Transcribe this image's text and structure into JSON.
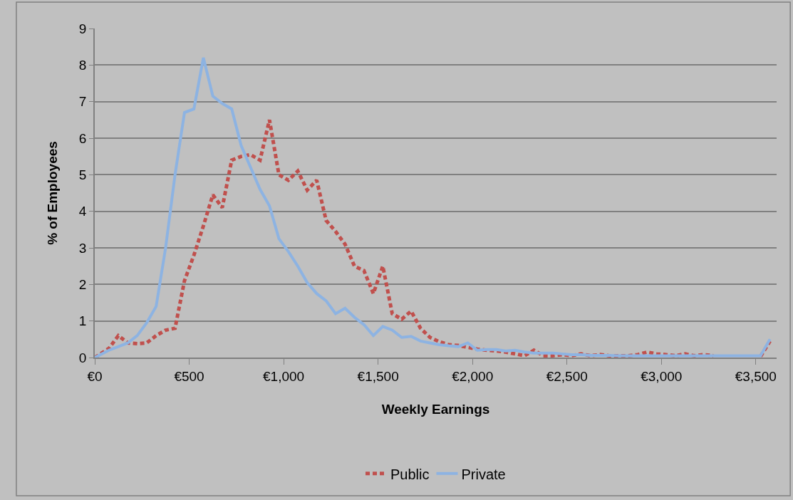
{
  "chart_data": {
    "type": "line",
    "xlabel": "Weekly Earnings",
    "ylabel": "% of Employees",
    "x": [
      0,
      75,
      125,
      175,
      225,
      275,
      325,
      375,
      425,
      475,
      525,
      575,
      625,
      675,
      725,
      775,
      825,
      875,
      925,
      975,
      1025,
      1075,
      1125,
      1175,
      1225,
      1275,
      1325,
      1375,
      1425,
      1475,
      1525,
      1575,
      1625,
      1675,
      1725,
      1775,
      1825,
      1875,
      1925,
      1975,
      2025,
      2075,
      2125,
      2175,
      2225,
      2275,
      2325,
      2375,
      2425,
      2475,
      2525,
      2575,
      2625,
      2675,
      2725,
      2775,
      2825,
      2875,
      2925,
      2975,
      3025,
      3075,
      3125,
      3175,
      3225,
      3275,
      3325,
      3375,
      3425,
      3475,
      3525,
      3575
    ],
    "series": [
      {
        "name": "Public",
        "color": "#c0504d",
        "line_style": "dashed",
        "values": [
          0,
          0.25,
          0.6,
          0.4,
          0.38,
          0.4,
          0.6,
          0.75,
          0.8,
          2.1,
          2.8,
          3.6,
          4.45,
          4.1,
          5.4,
          5.5,
          5.55,
          5.4,
          6.5,
          5.0,
          4.85,
          5.1,
          4.58,
          4.85,
          3.75,
          3.45,
          3.1,
          2.5,
          2.38,
          1.75,
          2.5,
          1.2,
          1.05,
          1.27,
          0.8,
          0.55,
          0.43,
          0.35,
          0.33,
          0.28,
          0.23,
          0.2,
          0.18,
          0.15,
          0.1,
          0.05,
          0.2,
          0.05,
          0.05,
          0.08,
          0.05,
          0.1,
          0.05,
          0.08,
          0.05,
          0.05,
          0.05,
          0.08,
          0.15,
          0.1,
          0.08,
          0.05,
          0.1,
          0.05,
          0.08,
          0.05,
          null,
          null,
          null,
          null,
          0.03,
          0.45
        ]
      },
      {
        "name": "Private",
        "color": "#8db3e2",
        "line_style": "solid",
        "values": [
          0,
          0.2,
          0.3,
          0.4,
          0.6,
          0.95,
          1.4,
          3.0,
          5.0,
          6.7,
          6.8,
          8.2,
          7.15,
          6.95,
          6.8,
          5.8,
          5.2,
          4.6,
          4.15,
          3.25,
          2.9,
          2.5,
          2.05,
          1.75,
          1.55,
          1.2,
          1.35,
          1.1,
          0.9,
          0.6,
          0.85,
          0.75,
          0.55,
          0.58,
          0.45,
          0.4,
          0.35,
          0.32,
          0.3,
          0.4,
          0.2,
          0.22,
          0.22,
          0.18,
          0.2,
          0.15,
          0.12,
          0.12,
          0.12,
          0.1,
          0.08,
          0.08,
          0.06,
          0.06,
          0.06,
          0.05,
          0.05,
          0.05,
          0.05,
          0.05,
          0.05,
          0.05,
          0.05,
          0.05,
          0.05,
          0.05,
          0.05,
          0.05,
          0.05,
          0.05,
          0.05,
          0.5
        ]
      }
    ],
    "xlim": [
      0,
      3610
    ],
    "ylim": [
      0,
      9
    ],
    "xticks": [
      {
        "value": 0,
        "label": "€0"
      },
      {
        "value": 500,
        "label": "€500"
      },
      {
        "value": 1000,
        "label": "€1,000"
      },
      {
        "value": 1500,
        "label": "€1,500"
      },
      {
        "value": 2000,
        "label": "€2,000"
      },
      {
        "value": 2500,
        "label": "€2,500"
      },
      {
        "value": 3000,
        "label": "€3,000"
      },
      {
        "value": 3500,
        "label": "€3,500"
      }
    ],
    "yticks": [
      0,
      1,
      2,
      3,
      4,
      5,
      6,
      7,
      8,
      9
    ],
    "grid": "y",
    "legend": "bottom",
    "marker": "none"
  }
}
